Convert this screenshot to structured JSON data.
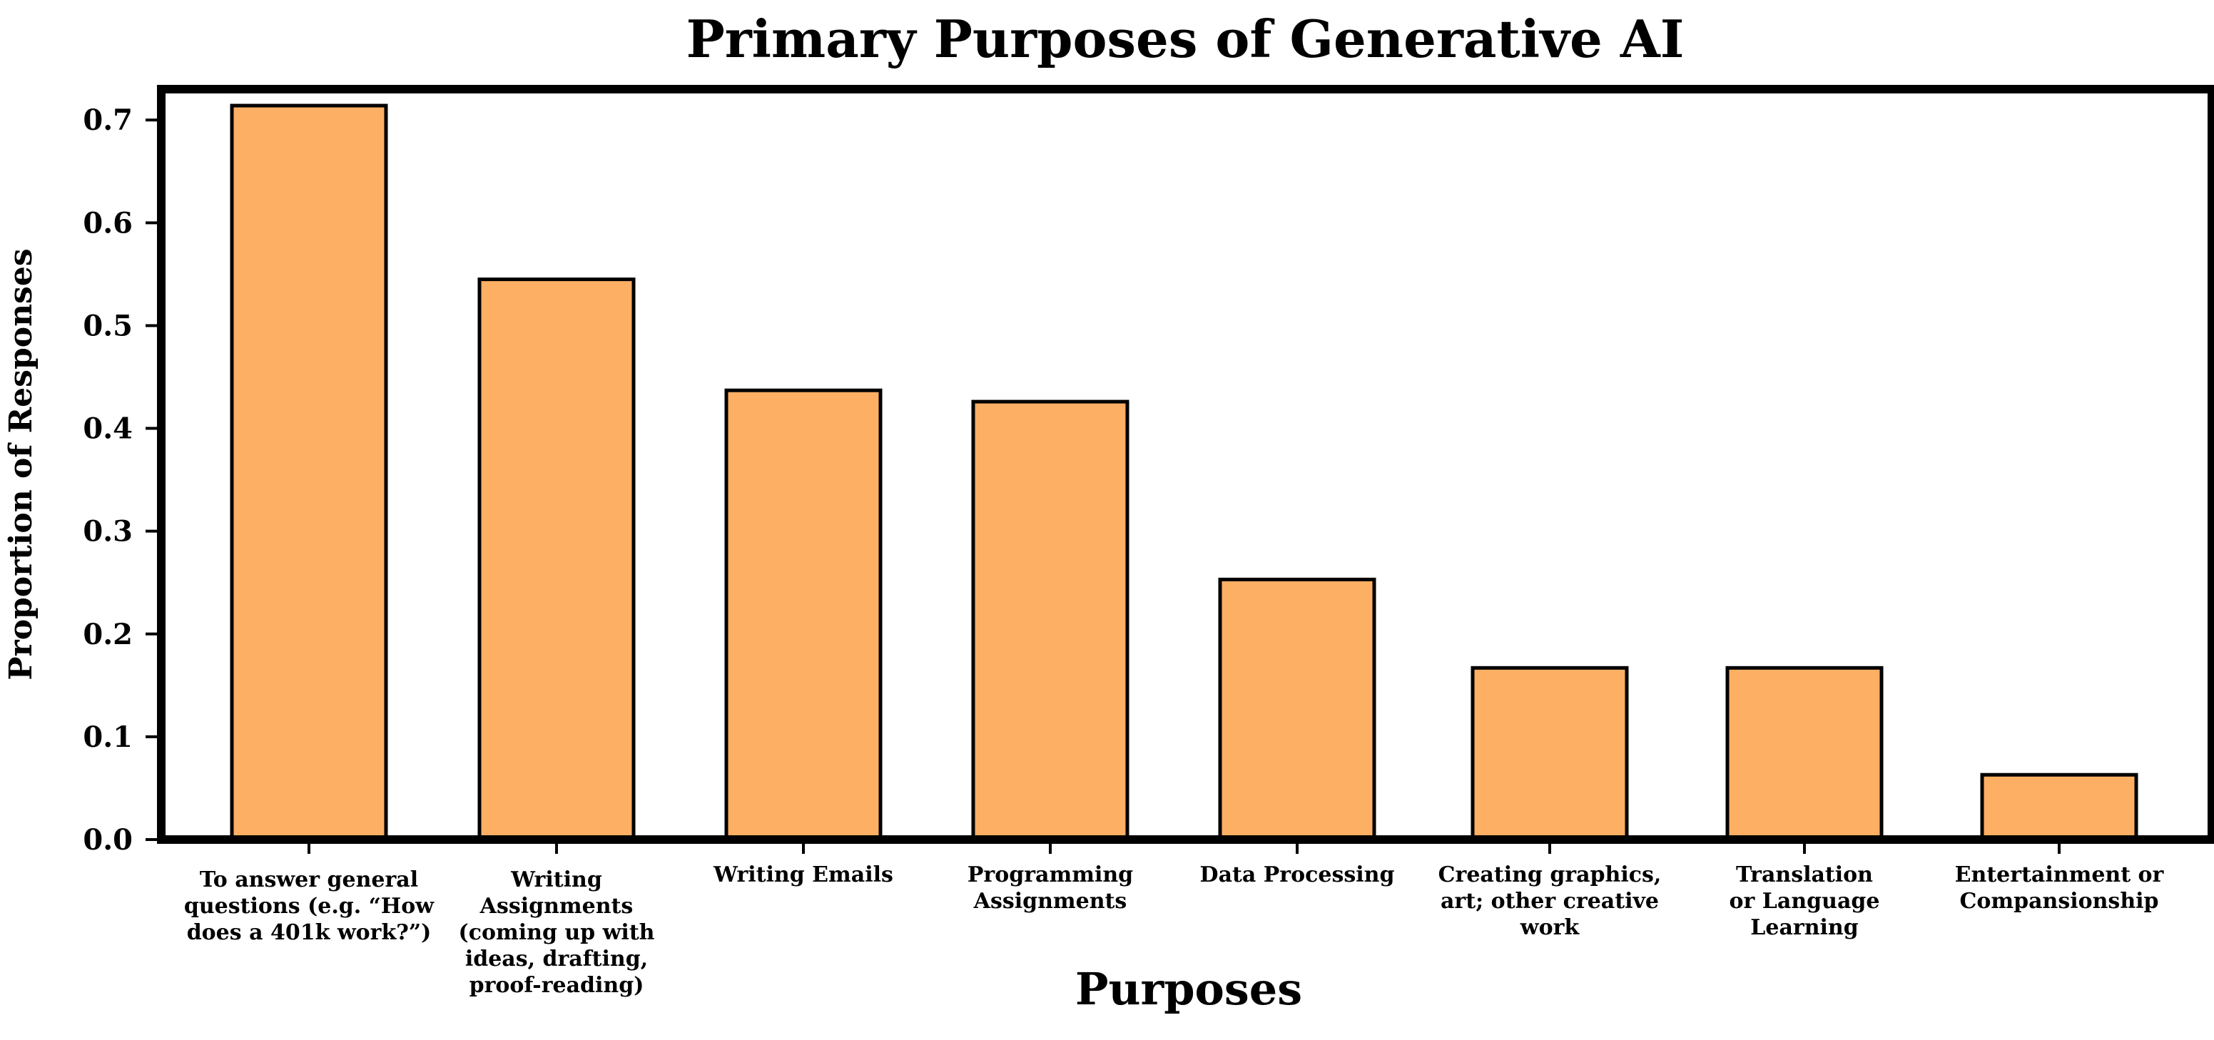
{
  "chart_data": {
    "type": "bar",
    "title": "Primary Purposes of Generative AI",
    "xlabel": "Purposes",
    "ylabel": "Proportion of Responses",
    "ylim": [
      0,
      0.73
    ],
    "yticks": [
      "0.0",
      "0.1",
      "0.2",
      "0.3",
      "0.4",
      "0.5",
      "0.6",
      "0.7"
    ],
    "grid": false,
    "bar_color": "#FDAF63",
    "edge_color": "#000000",
    "categories": [
      [
        "To answer general",
        "questions (e.g. “How",
        "does a 401k work?”)"
      ],
      [
        "Writing",
        "Assignments",
        "(coming up with",
        "ideas, drafting,",
        "proof-reading)"
      ],
      [
        "Writing Emails"
      ],
      [
        "Programming",
        "Assignments"
      ],
      [
        "Data Processing"
      ],
      [
        "Creating graphics,",
        "art; other creative",
        "work"
      ],
      [
        "Translation",
        "or Language",
        "Learning"
      ],
      [
        "Entertainment or",
        "Compansionship"
      ]
    ],
    "values": [
      0.714,
      0.545,
      0.437,
      0.426,
      0.253,
      0.167,
      0.167,
      0.063
    ]
  }
}
